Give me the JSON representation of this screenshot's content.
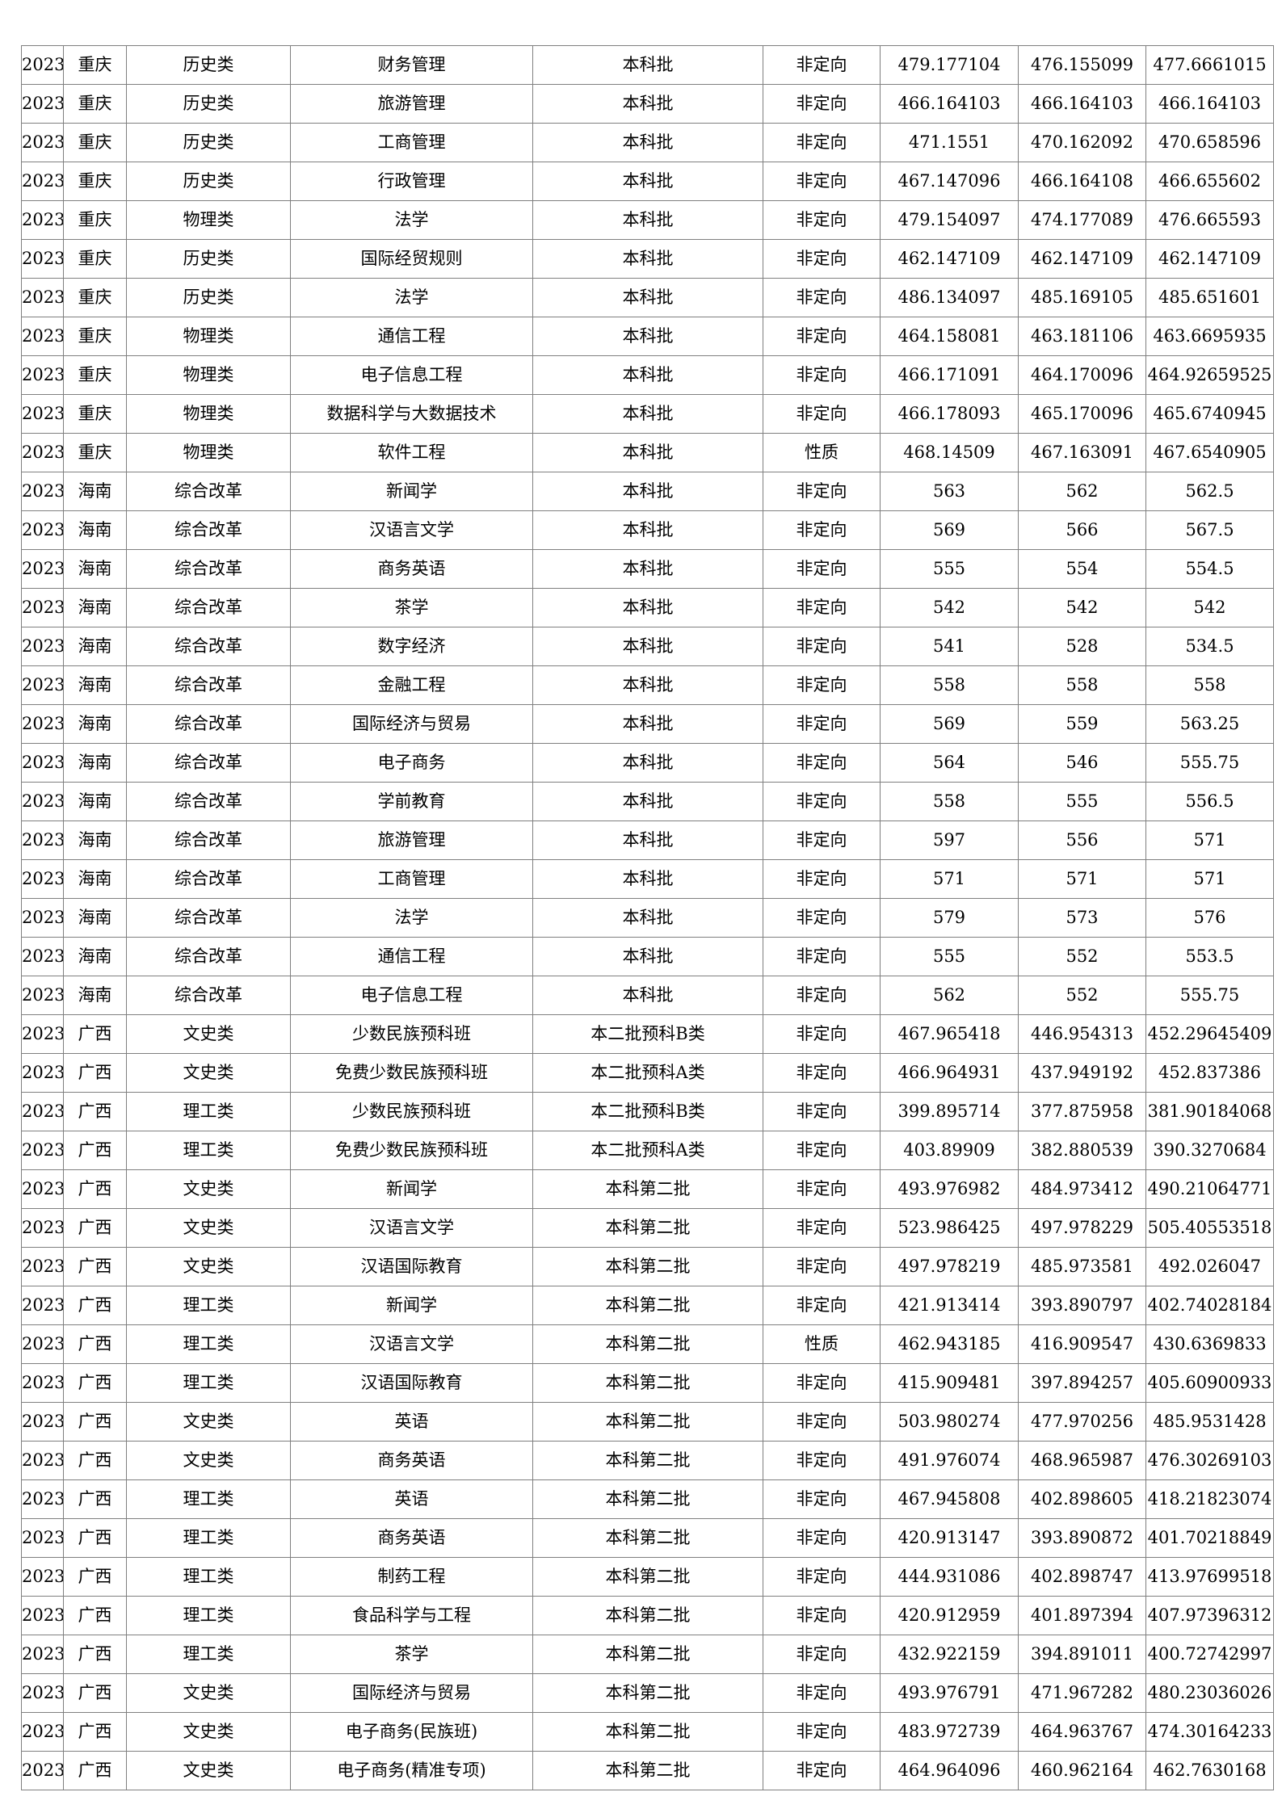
{
  "page": {
    "background_color": "#ffffff",
    "text_color": "#000000",
    "grid_color": "#7f7f7f"
  },
  "table": {
    "description": "admission-scores-table (no header row visible; continuation page)",
    "column_keys": [
      "year",
      "province",
      "subject-category",
      "major",
      "batch",
      "direction",
      "max-score",
      "min-score",
      "avg-score"
    ],
    "rows": [
      [
        "2023",
        "重庆",
        "历史类",
        "财务管理",
        "本科批",
        "非定向",
        "479.177104",
        "476.155099",
        "477.6661015"
      ],
      [
        "2023",
        "重庆",
        "历史类",
        "旅游管理",
        "本科批",
        "非定向",
        "466.164103",
        "466.164103",
        "466.164103"
      ],
      [
        "2023",
        "重庆",
        "历史类",
        "工商管理",
        "本科批",
        "非定向",
        "471.1551",
        "470.162092",
        "470.658596"
      ],
      [
        "2023",
        "重庆",
        "历史类",
        "行政管理",
        "本科批",
        "非定向",
        "467.147096",
        "466.164108",
        "466.655602"
      ],
      [
        "2023",
        "重庆",
        "物理类",
        "法学",
        "本科批",
        "非定向",
        "479.154097",
        "474.177089",
        "476.665593"
      ],
      [
        "2023",
        "重庆",
        "历史类",
        "国际经贸规则",
        "本科批",
        "非定向",
        "462.147109",
        "462.147109",
        "462.147109"
      ],
      [
        "2023",
        "重庆",
        "历史类",
        "法学",
        "本科批",
        "非定向",
        "486.134097",
        "485.169105",
        "485.651601"
      ],
      [
        "2023",
        "重庆",
        "物理类",
        "通信工程",
        "本科批",
        "非定向",
        "464.158081",
        "463.181106",
        "463.6695935"
      ],
      [
        "2023",
        "重庆",
        "物理类",
        "电子信息工程",
        "本科批",
        "非定向",
        "466.171091",
        "464.170096",
        "464.92659525"
      ],
      [
        "2023",
        "重庆",
        "物理类",
        "数据科学与大数据技术",
        "本科批",
        "非定向",
        "466.178093",
        "465.170096",
        "465.6740945"
      ],
      [
        "2023",
        "重庆",
        "物理类",
        "软件工程",
        "本科批",
        "性质",
        "468.14509",
        "467.163091",
        "467.6540905"
      ],
      [
        "2023",
        "海南",
        "综合改革",
        "新闻学",
        "本科批",
        "非定向",
        "563",
        "562",
        "562.5"
      ],
      [
        "2023",
        "海南",
        "综合改革",
        "汉语言文学",
        "本科批",
        "非定向",
        "569",
        "566",
        "567.5"
      ],
      [
        "2023",
        "海南",
        "综合改革",
        "商务英语",
        "本科批",
        "非定向",
        "555",
        "554",
        "554.5"
      ],
      [
        "2023",
        "海南",
        "综合改革",
        "茶学",
        "本科批",
        "非定向",
        "542",
        "542",
        "542"
      ],
      [
        "2023",
        "海南",
        "综合改革",
        "数字经济",
        "本科批",
        "非定向",
        "541",
        "528",
        "534.5"
      ],
      [
        "2023",
        "海南",
        "综合改革",
        "金融工程",
        "本科批",
        "非定向",
        "558",
        "558",
        "558"
      ],
      [
        "2023",
        "海南",
        "综合改革",
        "国际经济与贸易",
        "本科批",
        "非定向",
        "569",
        "559",
        "563.25"
      ],
      [
        "2023",
        "海南",
        "综合改革",
        "电子商务",
        "本科批",
        "非定向",
        "564",
        "546",
        "555.75"
      ],
      [
        "2023",
        "海南",
        "综合改革",
        "学前教育",
        "本科批",
        "非定向",
        "558",
        "555",
        "556.5"
      ],
      [
        "2023",
        "海南",
        "综合改革",
        "旅游管理",
        "本科批",
        "非定向",
        "597",
        "556",
        "571"
      ],
      [
        "2023",
        "海南",
        "综合改革",
        "工商管理",
        "本科批",
        "非定向",
        "571",
        "571",
        "571"
      ],
      [
        "2023",
        "海南",
        "综合改革",
        "法学",
        "本科批",
        "非定向",
        "579",
        "573",
        "576"
      ],
      [
        "2023",
        "海南",
        "综合改革",
        "通信工程",
        "本科批",
        "非定向",
        "555",
        "552",
        "553.5"
      ],
      [
        "2023",
        "海南",
        "综合改革",
        "电子信息工程",
        "本科批",
        "非定向",
        "562",
        "552",
        "555.75"
      ],
      [
        "2023",
        "广西",
        "文史类",
        "少数民族预科班",
        "本二批预科B类",
        "非定向",
        "467.965418",
        "446.954313",
        "452.29645409"
      ],
      [
        "2023",
        "广西",
        "文史类",
        "免费少数民族预科班",
        "本二批预科A类",
        "非定向",
        "466.964931",
        "437.949192",
        "452.837386"
      ],
      [
        "2023",
        "广西",
        "理工类",
        "少数民族预科班",
        "本二批预科B类",
        "非定向",
        "399.895714",
        "377.875958",
        "381.90184068"
      ],
      [
        "2023",
        "广西",
        "理工类",
        "免费少数民族预科班",
        "本二批预科A类",
        "非定向",
        "403.89909",
        "382.880539",
        "390.3270684"
      ],
      [
        "2023",
        "广西",
        "文史类",
        "新闻学",
        "本科第二批",
        "非定向",
        "493.976982",
        "484.973412",
        "490.21064771"
      ],
      [
        "2023",
        "广西",
        "文史类",
        "汉语言文学",
        "本科第二批",
        "非定向",
        "523.986425",
        "497.978229",
        "505.40553518"
      ],
      [
        "2023",
        "广西",
        "文史类",
        "汉语国际教育",
        "本科第二批",
        "非定向",
        "497.978219",
        "485.973581",
        "492.026047"
      ],
      [
        "2023",
        "广西",
        "理工类",
        "新闻学",
        "本科第二批",
        "非定向",
        "421.913414",
        "393.890797",
        "402.74028184"
      ],
      [
        "2023",
        "广西",
        "理工类",
        "汉语言文学",
        "本科第二批",
        "性质",
        "462.943185",
        "416.909547",
        "430.6369833"
      ],
      [
        "2023",
        "广西",
        "理工类",
        "汉语国际教育",
        "本科第二批",
        "非定向",
        "415.909481",
        "397.894257",
        "405.60900933"
      ],
      [
        "2023",
        "广西",
        "文史类",
        "英语",
        "本科第二批",
        "非定向",
        "503.980274",
        "477.970256",
        "485.9531428"
      ],
      [
        "2023",
        "广西",
        "文史类",
        "商务英语",
        "本科第二批",
        "非定向",
        "491.976074",
        "468.965987",
        "476.30269103"
      ],
      [
        "2023",
        "广西",
        "理工类",
        "英语",
        "本科第二批",
        "非定向",
        "467.945808",
        "402.898605",
        "418.21823074"
      ],
      [
        "2023",
        "广西",
        "理工类",
        "商务英语",
        "本科第二批",
        "非定向",
        "420.913147",
        "393.890872",
        "401.70218849"
      ],
      [
        "2023",
        "广西",
        "理工类",
        "制药工程",
        "本科第二批",
        "非定向",
        "444.931086",
        "402.898747",
        "413.97699518"
      ],
      [
        "2023",
        "广西",
        "理工类",
        "食品科学与工程",
        "本科第二批",
        "非定向",
        "420.912959",
        "401.897394",
        "407.97396312"
      ],
      [
        "2023",
        "广西",
        "理工类",
        "茶学",
        "本科第二批",
        "非定向",
        "432.922159",
        "394.891011",
        "400.72742997"
      ],
      [
        "2023",
        "广西",
        "文史类",
        "国际经济与贸易",
        "本科第二批",
        "非定向",
        "493.976791",
        "471.967282",
        "480.23036026"
      ],
      [
        "2023",
        "广西",
        "文史类",
        "电子商务(民族班)",
        "本科第二批",
        "非定向",
        "483.972739",
        "464.963767",
        "474.30164233"
      ],
      [
        "2023",
        "广西",
        "文史类",
        "电子商务(精准专项)",
        "本科第二批",
        "非定向",
        "464.964096",
        "460.962164",
        "462.7630168"
      ]
    ]
  }
}
